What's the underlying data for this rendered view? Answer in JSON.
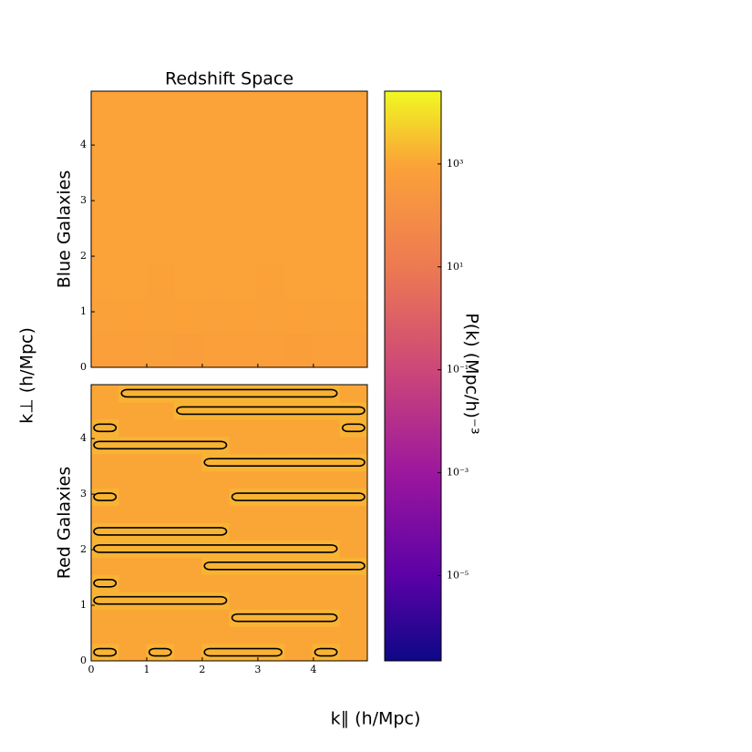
{
  "chart_data": [
    {
      "type": "heatmap",
      "title": "Redshift Space",
      "ylabel": "Blue Galaxies",
      "xlim": [
        0,
        4.97
      ],
      "ylim": [
        0,
        4.97
      ],
      "xticks": [
        0,
        1,
        2,
        3,
        4
      ],
      "yticks": [
        0,
        1,
        2,
        3,
        4
      ],
      "z": [
        [
          700,
          650,
          720,
          600,
          680,
          640,
          700,
          620,
          690,
          660
        ],
        [
          860,
          880,
          850,
          870,
          860,
          880,
          850,
          870,
          860,
          880
        ],
        [
          900,
          910,
          890,
          900,
          920,
          900,
          890,
          910,
          900,
          900
        ],
        [
          920,
          910,
          930,
          920,
          910,
          920,
          930,
          910,
          920,
          920
        ],
        [
          930,
          940,
          930,
          920,
          940,
          930,
          930,
          940,
          930,
          930
        ],
        [
          940,
          930,
          950,
          940,
          930,
          940,
          950,
          940,
          930,
          940
        ],
        [
          950,
          960,
          950,
          940,
          960,
          950,
          950,
          960,
          950,
          950
        ],
        [
          960,
          950,
          960,
          970,
          950,
          960,
          960,
          950,
          970,
          960
        ]
      ]
    },
    {
      "type": "heatmap",
      "ylabel": "Red Galaxies",
      "xlim": [
        0,
        4.97
      ],
      "ylim": [
        0,
        4.97
      ],
      "xticks": [
        0,
        1,
        2,
        3,
        4
      ],
      "yticks": [
        0,
        1,
        2,
        3,
        4
      ],
      "contour_level": 1500,
      "contour_color": "#000000",
      "z": [
        [
          1800,
          1100,
          1800,
          1100,
          1800,
          1800,
          1800,
          1100,
          1800,
          1100
        ],
        [
          1100,
          1100,
          1100,
          1100,
          1100,
          1100,
          1100,
          1100,
          1100,
          1100
        ],
        [
          1100,
          1100,
          1100,
          1100,
          1100,
          1800,
          1800,
          1800,
          1800,
          1100
        ],
        [
          1800,
          1800,
          1800,
          1800,
          1800,
          1100,
          1100,
          1100,
          1100,
          1100
        ],
        [
          1800,
          1100,
          1100,
          1100,
          1100,
          1100,
          1100,
          1100,
          1100,
          1100
        ],
        [
          1100,
          1100,
          1100,
          1100,
          1800,
          1800,
          1800,
          1800,
          1800,
          1800
        ],
        [
          1800,
          1800,
          1800,
          1800,
          1800,
          1800,
          1800,
          1800,
          1800,
          1100
        ],
        [
          1800,
          1800,
          1800,
          1800,
          1800,
          1100,
          1100,
          1100,
          1100,
          1100
        ],
        [
          1100,
          1100,
          1100,
          1100,
          1100,
          1100,
          1100,
          1100,
          1100,
          1100
        ],
        [
          1800,
          1100,
          1100,
          1100,
          1100,
          1800,
          1800,
          1800,
          1800,
          1800
        ],
        [
          1100,
          1100,
          1100,
          1100,
          1100,
          1100,
          1100,
          1100,
          1100,
          1100
        ],
        [
          1100,
          1100,
          1100,
          1100,
          1800,
          1800,
          1800,
          1800,
          1800,
          1800
        ],
        [
          1800,
          1800,
          1800,
          1800,
          1800,
          1100,
          1100,
          1100,
          1100,
          1100
        ],
        [
          1800,
          1100,
          1100,
          1100,
          1100,
          1100,
          1100,
          1100,
          1100,
          1800
        ],
        [
          1100,
          1100,
          1100,
          1800,
          1800,
          1800,
          1800,
          1800,
          1800,
          1800
        ],
        [
          1100,
          1800,
          1800,
          1800,
          1800,
          1800,
          1800,
          1800,
          1800,
          1100
        ]
      ]
    }
  ],
  "xlabel": "k∥ (h/Mpc)",
  "ylabel": "k⊥ (h/Mpc)",
  "colorbar": {
    "label": "P(k) (Mpc/h)⁻³",
    "log": true,
    "lim": [
      2.2e-07,
      26000
    ],
    "ticks": [
      {
        "value": 1000,
        "label": "10³"
      },
      {
        "value": 10,
        "label": "10¹"
      },
      {
        "value": 0.1,
        "label": "10⁻¹"
      },
      {
        "value": 0.001,
        "label": "10⁻³"
      },
      {
        "value": 1e-05,
        "label": "10⁻⁵"
      }
    ]
  }
}
